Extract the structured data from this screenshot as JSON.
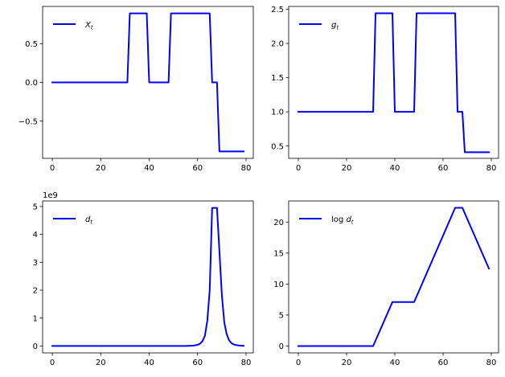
{
  "chart_data": [
    {
      "type": "line",
      "legend": [
        "X",
        "t"
      ],
      "legend_position": "upper-left",
      "color": "#0000ff",
      "xlim": [
        -4,
        83
      ],
      "ylim": [
        -0.98,
        0.98
      ],
      "xticks": [
        0,
        20,
        40,
        60,
        80
      ],
      "yticks": [
        -0.5,
        0.0,
        0.5
      ],
      "ytick_labels": [
        "−0.5",
        "0.0",
        "0.5"
      ],
      "offset_label": "",
      "x": [
        0,
        31,
        32,
        39,
        40,
        48,
        49,
        65,
        66,
        68,
        69,
        79
      ],
      "y": [
        0.0,
        0.0,
        0.89,
        0.89,
        0.0,
        0.0,
        0.89,
        0.89,
        0.0,
        0.0,
        -0.89,
        -0.89
      ]
    },
    {
      "type": "line",
      "legend": [
        "g",
        "t"
      ],
      "legend_position": "upper-left",
      "color": "#0000ff",
      "xlim": [
        -4,
        83
      ],
      "ylim": [
        0.32,
        2.54
      ],
      "xticks": [
        0,
        20,
        40,
        60,
        80
      ],
      "yticks": [
        0.5,
        1.0,
        1.5,
        2.0,
        2.5
      ],
      "ytick_labels": [
        "0.5",
        "1.0",
        "1.5",
        "2.0",
        "2.5"
      ],
      "offset_label": "",
      "x": [
        0,
        31,
        32,
        39,
        40,
        48,
        49,
        65,
        66,
        68,
        69,
        79
      ],
      "y": [
        1.0,
        1.0,
        2.44,
        2.44,
        1.0,
        1.0,
        2.44,
        2.44,
        1.0,
        1.0,
        0.41,
        0.41
      ]
    },
    {
      "type": "line",
      "legend": [
        "d",
        "t"
      ],
      "legend_position": "upper-left",
      "color": "#0000ff",
      "xlim": [
        -4,
        83
      ],
      "ylim": [
        -0.25,
        5.2
      ],
      "xticks": [
        0,
        20,
        40,
        60,
        80
      ],
      "yticks": [
        0,
        1,
        2,
        3,
        4,
        5
      ],
      "ytick_labels": [
        "0",
        "1",
        "2",
        "3",
        "4",
        "5"
      ],
      "offset_label": "1e9",
      "x": [
        0,
        55,
        58,
        59,
        60,
        61,
        62,
        63,
        64,
        65,
        66,
        67,
        68,
        69,
        70,
        71,
        72,
        73,
        74,
        75,
        76,
        77,
        78,
        79
      ],
      "y": [
        0,
        0,
        0.01,
        0.02,
        0.04,
        0.08,
        0.17,
        0.36,
        0.9,
        2.0,
        4.95,
        4.95,
        4.95,
        3.4,
        1.85,
        0.85,
        0.42,
        0.2,
        0.1,
        0.05,
        0.03,
        0.015,
        0.008,
        0.004
      ]
    },
    {
      "type": "line",
      "legend": [
        "log d",
        "t"
      ],
      "legend_position": "upper-left",
      "color": "#0000ff",
      "xlim": [
        -4,
        83
      ],
      "ylim": [
        -1.1,
        23.4
      ],
      "xticks": [
        0,
        20,
        40,
        60,
        80
      ],
      "yticks": [
        0,
        5,
        10,
        15,
        20
      ],
      "ytick_labels": [
        "0",
        "5",
        "10",
        "15",
        "20"
      ],
      "offset_label": "",
      "x": [
        0,
        31,
        39,
        48,
        65,
        68,
        79
      ],
      "y": [
        0,
        0,
        7.1,
        7.1,
        22.3,
        22.3,
        12.5
      ]
    }
  ]
}
